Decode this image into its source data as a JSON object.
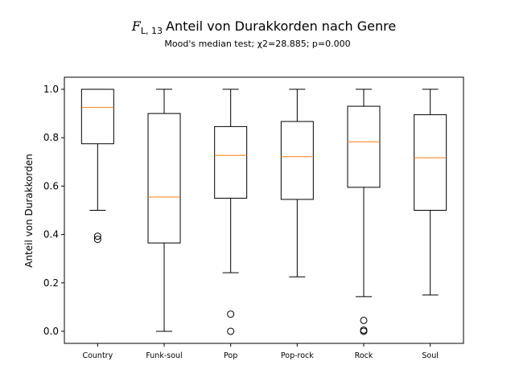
{
  "chart_data": {
    "type": "box",
    "title_symbol": "F",
    "title_subscript": "L, 13",
    "title_text": "Anteil von Durakkorden nach Genre",
    "subtitle": "Mood's median test; χ2=28.885; p=0.000",
    "ylabel": "Anteil von Durakkorden",
    "xlabel": "",
    "ylim": [
      -0.05,
      1.05
    ],
    "yticks": [
      "0.0",
      "0.2",
      "0.4",
      "0.6",
      "0.8",
      "1.0"
    ],
    "ytick_values": [
      0.0,
      0.2,
      0.4,
      0.6,
      0.8,
      1.0
    ],
    "grid": false,
    "colors": {
      "box": "#000000",
      "median": "#ff7f0e",
      "flier": "#000000"
    },
    "categories": [
      "Country",
      "Funk-soul",
      "Pop",
      "Pop-rock",
      "Rock",
      "Soul"
    ],
    "boxes": [
      {
        "category": "Country",
        "whisker_low": 0.5,
        "q1": 0.775,
        "median": 0.925,
        "q3": 1.0,
        "whisker_high": 1.0,
        "outliers": [
          0.393,
          0.38
        ]
      },
      {
        "category": "Funk-soul",
        "whisker_low": 0.0,
        "q1": 0.365,
        "median": 0.555,
        "q3": 0.9,
        "whisker_high": 1.0,
        "outliers": []
      },
      {
        "category": "Pop",
        "whisker_low": 0.242,
        "q1": 0.55,
        "median": 0.727,
        "q3": 0.846,
        "whisker_high": 1.0,
        "outliers": [
          0.071,
          0.0
        ]
      },
      {
        "category": "Pop-rock",
        "whisker_low": 0.225,
        "q1": 0.545,
        "median": 0.722,
        "q3": 0.867,
        "whisker_high": 1.0,
        "outliers": []
      },
      {
        "category": "Rock",
        "whisker_low": 0.143,
        "q1": 0.595,
        "median": 0.783,
        "q3": 0.93,
        "whisker_high": 1.0,
        "outliers": [
          0.045,
          0.005,
          0.0
        ]
      },
      {
        "category": "Soul",
        "whisker_low": 0.15,
        "q1": 0.5,
        "median": 0.717,
        "q3": 0.895,
        "whisker_high": 1.0,
        "outliers": []
      }
    ]
  }
}
